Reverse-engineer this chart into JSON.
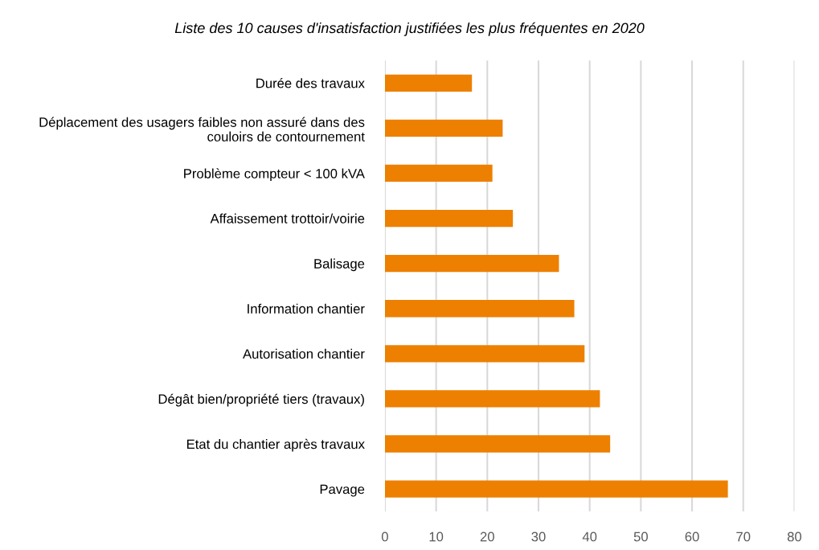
{
  "chart_data": {
    "type": "bar",
    "orientation": "horizontal",
    "title": "Liste des 10 causes d'insatisfaction justifiées les plus fréquentes en 2020",
    "categories": [
      "Durée des travaux",
      "Déplacement des usagers faibles non assuré dans des couloirs de contournement",
      "Problème compteur < 100 kVA",
      "Affaissement trottoir/voirie",
      "Balisage",
      "Information chantier",
      "Autorisation chantier",
      "Dégât bien/propriété tiers (travaux)",
      "Etat du chantier après travaux",
      "Pavage"
    ],
    "values": [
      17,
      23,
      21,
      25,
      34,
      37,
      39,
      42,
      44,
      67
    ],
    "color": "#ed8000",
    "xlim": [
      0,
      80
    ],
    "xticks": [
      0,
      10,
      20,
      30,
      40,
      50,
      60,
      70,
      80
    ],
    "grid": "x"
  }
}
